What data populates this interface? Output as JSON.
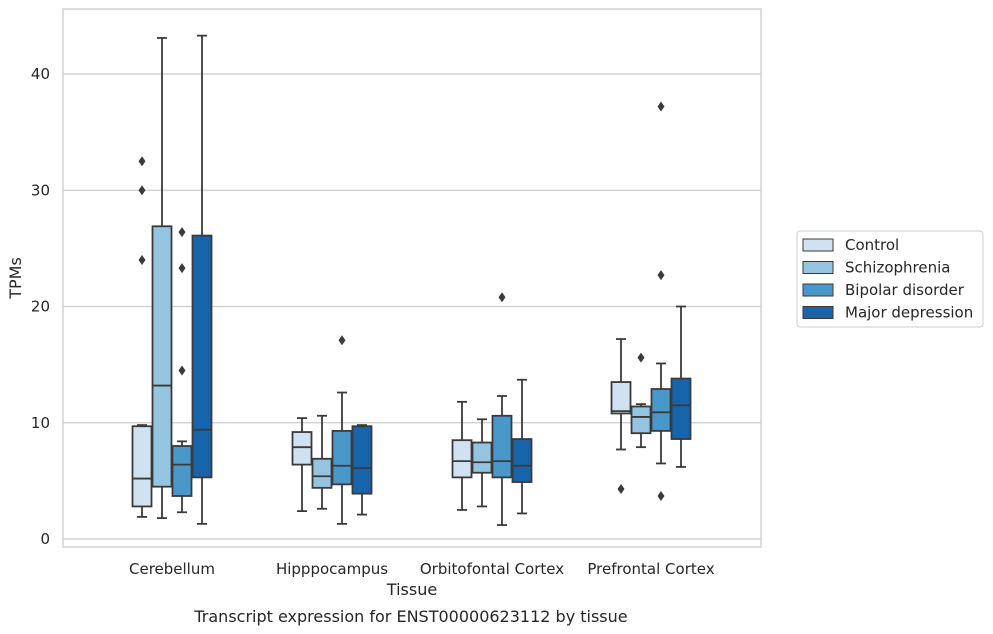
{
  "chart_data": {
    "type": "box",
    "caption": "Transcript expression for ENST00000623112 by tissue",
    "xlabel": "Tissue",
    "ylabel": "TPMs",
    "ylim": [
      -0.8,
      45.5
    ],
    "yticks": [
      0,
      10,
      20,
      30,
      40
    ],
    "grid": "horizontal",
    "legend_position": "right",
    "categories": [
      "Cerebellum",
      "Hipppocampus",
      "Orbitofontal Cortex",
      "Prefrontal Cortex"
    ],
    "series": [
      {
        "name": "Control",
        "color": "#d0e1f2",
        "boxes": [
          {
            "whislo": 1.9,
            "q1": 2.8,
            "med": 5.2,
            "q3": 9.7,
            "whishi": 9.8,
            "fliers": [
              24.0,
              30.0,
              32.5
            ]
          },
          {
            "whislo": 2.4,
            "q1": 6.4,
            "med": 7.9,
            "q3": 9.2,
            "whishi": 10.4,
            "fliers": []
          },
          {
            "whislo": 2.5,
            "q1": 5.3,
            "med": 6.7,
            "q3": 8.5,
            "whishi": 11.8,
            "fliers": []
          },
          {
            "whislo": 7.7,
            "q1": 10.8,
            "med": 11.0,
            "q3": 13.5,
            "whishi": 17.2,
            "fliers": [
              4.3
            ]
          }
        ]
      },
      {
        "name": "Schizophrenia",
        "color": "#94c4df",
        "boxes": [
          {
            "whislo": 1.8,
            "q1": 4.5,
            "med": 13.2,
            "q3": 26.9,
            "whishi": 43.1,
            "fliers": []
          },
          {
            "whislo": 2.6,
            "q1": 4.4,
            "med": 5.4,
            "q3": 6.9,
            "whishi": 10.6,
            "fliers": []
          },
          {
            "whislo": 2.8,
            "q1": 5.7,
            "med": 6.6,
            "q3": 8.3,
            "whishi": 10.3,
            "fliers": []
          },
          {
            "whislo": 7.9,
            "q1": 9.1,
            "med": 10.5,
            "q3": 11.4,
            "whishi": 11.6,
            "fliers": [
              15.6
            ]
          }
        ]
      },
      {
        "name": "Bipolar disorder",
        "color": "#4a98c9",
        "boxes": [
          {
            "whislo": 2.3,
            "q1": 3.7,
            "med": 6.4,
            "q3": 8.0,
            "whishi": 8.4,
            "fliers": [
              14.5,
              23.3,
              26.4
            ]
          },
          {
            "whislo": 1.3,
            "q1": 4.7,
            "med": 6.3,
            "q3": 9.3,
            "whishi": 12.6,
            "fliers": [
              17.1
            ]
          },
          {
            "whislo": 1.2,
            "q1": 5.3,
            "med": 6.7,
            "q3": 10.6,
            "whishi": 12.3,
            "fliers": [
              20.8
            ]
          },
          {
            "whislo": 6.5,
            "q1": 9.3,
            "med": 10.9,
            "q3": 12.9,
            "whishi": 15.1,
            "fliers": [
              3.7,
              22.7,
              37.2
            ]
          }
        ]
      },
      {
        "name": "Major depression",
        "color": "#1764ab",
        "boxes": [
          {
            "whislo": 1.3,
            "q1": 5.3,
            "med": 9.4,
            "q3": 26.1,
            "whishi": 43.3,
            "fliers": []
          },
          {
            "whislo": 2.1,
            "q1": 3.9,
            "med": 6.1,
            "q3": 9.7,
            "whishi": 9.8,
            "fliers": []
          },
          {
            "whislo": 2.2,
            "q1": 4.9,
            "med": 6.3,
            "q3": 8.6,
            "whishi": 13.7,
            "fliers": []
          },
          {
            "whislo": 6.2,
            "q1": 8.6,
            "med": 11.5,
            "q3": 13.8,
            "whishi": 20.0,
            "fliers": []
          }
        ]
      }
    ]
  }
}
